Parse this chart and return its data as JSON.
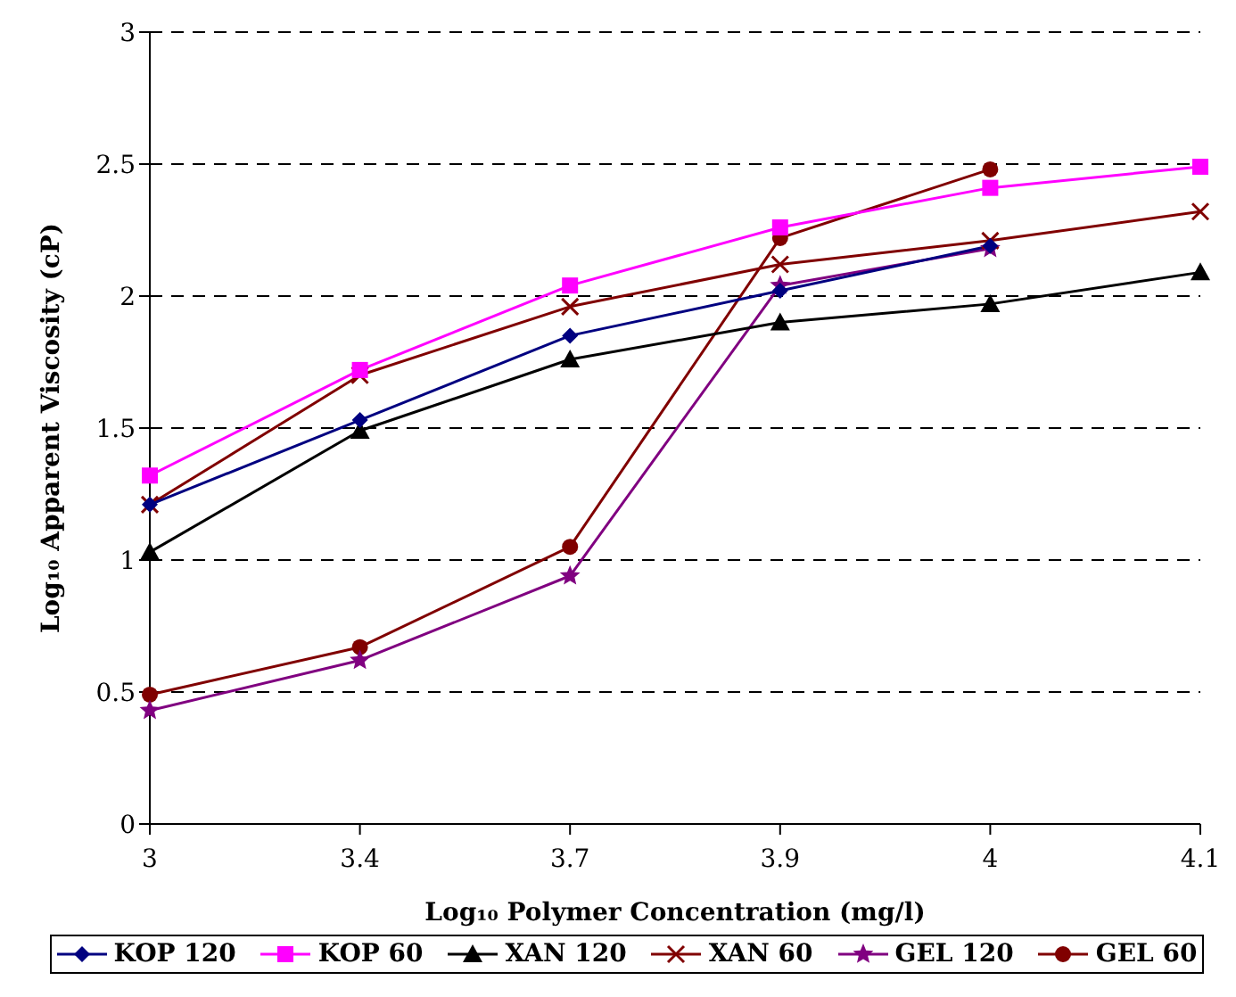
{
  "chart_data": {
    "type": "line",
    "xlabel": "Log₁₀ Polymer Concentration (mg/l)",
    "ylabel": "Log₁₀ Apparent Viscosity (cP)",
    "categories": [
      "3",
      "3.4",
      "3.7",
      "3.9",
      "4",
      "4.1"
    ],
    "series": [
      {
        "name": "KOP 120",
        "color": "#000080",
        "marker": "diamond",
        "values": [
          1.21,
          1.53,
          1.85,
          2.02,
          2.19,
          null
        ]
      },
      {
        "name": "KOP 60",
        "color": "#ff00ff",
        "marker": "square",
        "values": [
          1.32,
          1.72,
          2.04,
          2.26,
          2.41,
          2.49
        ]
      },
      {
        "name": "XAN 120",
        "color": "#000000",
        "marker": "triangle",
        "values": [
          1.03,
          1.49,
          1.76,
          1.9,
          1.97,
          2.09
        ]
      },
      {
        "name": "XAN 60",
        "color": "#800000",
        "marker": "cross",
        "values": [
          1.21,
          1.7,
          1.96,
          2.12,
          2.21,
          2.32
        ]
      },
      {
        "name": "GEL 120",
        "color": "#800080",
        "marker": "star",
        "values": [
          0.43,
          0.62,
          0.94,
          2.04,
          2.18,
          null
        ]
      },
      {
        "name": "GEL 60",
        "color": "#800000",
        "marker": "circle",
        "values": [
          0.49,
          0.67,
          1.05,
          2.22,
          2.48,
          null
        ]
      }
    ],
    "ylim": [
      0,
      3
    ],
    "yticks": [
      0,
      0.5,
      1,
      1.5,
      2,
      2.5,
      3
    ],
    "grid": "y",
    "legend": "bottom",
    "line_style": "solid"
  }
}
